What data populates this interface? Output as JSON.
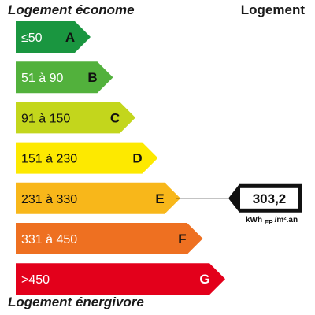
{
  "headings": {
    "top_left": "Logement économe",
    "top_right": "Logement",
    "bottom_left": "Logement énergivore"
  },
  "chart_data": {
    "type": "bar",
    "classes": [
      {
        "letter": "A",
        "range": "≤50",
        "color": "#1a9640"
      },
      {
        "letter": "B",
        "range": "51 à 90",
        "color": "#52b13c"
      },
      {
        "letter": "C",
        "range": "91 à 150",
        "color": "#c3d61c"
      },
      {
        "letter": "D",
        "range": "151 à 230",
        "color": "#fde900"
      },
      {
        "letter": "E",
        "range": "231 à 330",
        "color": "#f8b71a"
      },
      {
        "letter": "F",
        "range": "331 à 450",
        "color": "#ee7021"
      },
      {
        "letter": "G",
        "range": ">450",
        "color": "#e3001b"
      }
    ],
    "indicator": {
      "class": "E",
      "value": "303,2",
      "unit_main": "kWh",
      "unit_sub": "EP",
      "unit_tail": "/m².an"
    }
  }
}
